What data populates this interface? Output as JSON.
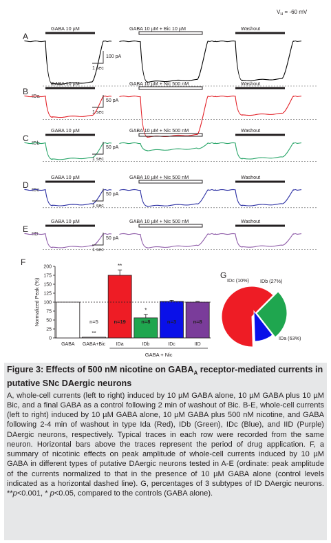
{
  "figure": {
    "vh_label": "V",
    "vh_sub": "H",
    "vh_value": " = -60 mV",
    "rows": [
      {
        "letter": "A",
        "subtype": "",
        "color": "#000000",
        "gaba_label": "GABA 10 µM",
        "combo_label": "GABA 10 µM + Bic 10 µM",
        "washout_label": "Washout",
        "scale_y": "100 pA",
        "scale_x": "1 sec"
      },
      {
        "letter": "B",
        "subtype": "IDa",
        "color": "#e21f26",
        "gaba_label": "GABA 10 µM",
        "combo_label": "GABA 10 µM + Nic 500 nM",
        "washout_label": "Washout",
        "scale_y": "50 pA",
        "scale_x": "1 sec"
      },
      {
        "letter": "C",
        "subtype": "IDb",
        "color": "#2aa66a",
        "gaba_label": "GABA 10 µM",
        "combo_label": "GABA 10 µM + Nic 500 nM",
        "washout_label": "Washout",
        "scale_y": "50 pA",
        "scale_x": "1 sec"
      },
      {
        "letter": "D",
        "subtype": "IDc",
        "color": "#2b2fa3",
        "gaba_label": "GABA 10 µM",
        "combo_label": "GABA 10 µM + Nic 500 nM",
        "washout_label": "Washout",
        "scale_y": "50 pA",
        "scale_x": "1 sec"
      },
      {
        "letter": "E",
        "subtype": "IID",
        "color": "#8e5ba8",
        "gaba_label": "GABA 10 µM",
        "combo_label": "GABA 10 µM + Nic 500 nM",
        "washout_label": "Washout",
        "scale_y": "50 pA",
        "scale_x": "1 sec"
      }
    ],
    "panel_f_letter": "F",
    "panel_g_letter": "G",
    "colors": {
      "IDa": "#ee1c25",
      "IDb": "#1fa64f",
      "IDc": "#0a10e8",
      "IID": "#7a3c9a",
      "GABA": "#ffffff",
      "ink": "#231f20"
    }
  },
  "chart_data": [
    {
      "type": "bar",
      "ylabel": "Normalized Peak (%)",
      "ylim": [
        0,
        200
      ],
      "yticks": [
        0,
        25,
        50,
        75,
        100,
        125,
        150,
        175,
        200
      ],
      "categories": [
        "GABA",
        "GABA+Bic",
        "IDa",
        "IDb",
        "IDc",
        "IID"
      ],
      "values": [
        100,
        2,
        175,
        56,
        102,
        100
      ],
      "errors": [
        0,
        0,
        15,
        10,
        3,
        2
      ],
      "n_labels": [
        "",
        "n=5",
        "n=19",
        "n=8",
        "n=3",
        "n=8"
      ],
      "significance": [
        "",
        "**",
        "**",
        "*",
        "",
        ""
      ],
      "group_label": "GABA + Nic",
      "control_line": 100,
      "grid": false
    },
    {
      "type": "pie",
      "labels": [
        "IDa (63%)",
        "IDb (27%)",
        "IDc (10%)"
      ],
      "values": [
        63,
        27,
        10
      ]
    }
  ],
  "caption": {
    "title_pre": "Figure 3: Effects of 500 nM nicotine on GABA",
    "title_sub": "A",
    "title_post": " receptor-mediated currents in putative SNc DAergic neurons",
    "body_1": "A, whole-cell currents (left to right) induced by 10 µM GABA alone, 10 µM GABA plus 10 µM Bic, and a final GABA as a control following 2 min of washout of Bic. B-E, whole-cell currents (left to right) induced by 10 µM GABA alone, 10 µM GABA plus 500 nM nicotine, and GABA following 2-4 min of washout in type Ida (Red), IDb (Green), IDc (Blue), and IID (Purple) DAergic neurons, respectively. Typical traces in each row were recorded from the same neuron. Horizontal bars above the traces represent the period of drug application. F, a summary of nicotinic effects on peak amplitude of whole-cell currents induced by 10 µM GABA in different types of putative DAergic neurons tested in A-E (ordinate: peak amplitude of the currents normalized to that in the presence of 10 µM GABA alone (control levels indicated as a horizontal dashed line). G, percentages of 3 subtypes of ID DAergic neurons. **",
    "p1": "p",
    "body_2": "<0.001, * ",
    "p2": "p",
    "body_3": "<0.05, compared to the controls (GABA alone)."
  }
}
